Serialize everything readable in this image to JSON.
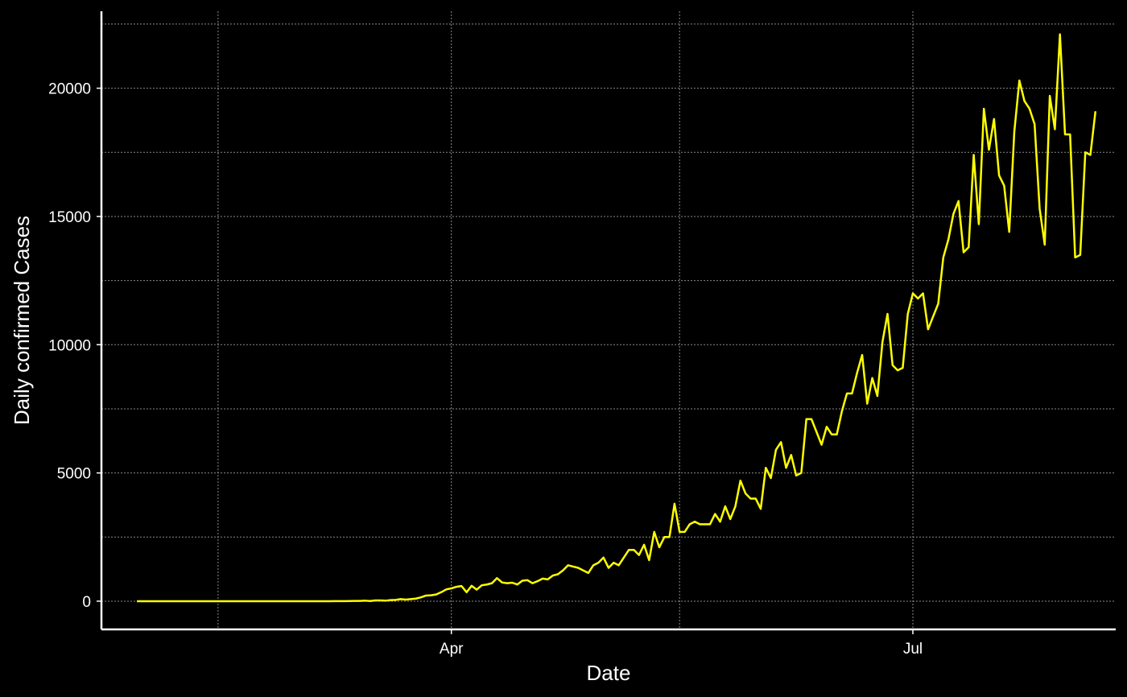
{
  "chart_data": {
    "type": "line",
    "xlabel": "Date",
    "ylabel": "Daily confirmed Cases",
    "x_start": "2020-01-30",
    "x_end": "2020-07-20",
    "x_domain": [
      "2020-01-23",
      "2020-08-10"
    ],
    "ylim": [
      -1100,
      23000
    ],
    "x_ticks": [
      {
        "date": "2020-04-01",
        "label": "Apr"
      },
      {
        "date": "2020-07-01",
        "label": "Jul"
      }
    ],
    "x_minor_grid": [
      "2020-02-15",
      "2020-05-16"
    ],
    "y_ticks": [
      0,
      5000,
      10000,
      15000,
      20000
    ],
    "y_tick_labels": [
      "0",
      "5000",
      "10000",
      "15000",
      "20000"
    ],
    "y_minor_grid": [
      2500,
      7500,
      12500,
      17500,
      22500
    ],
    "grid": true,
    "legend": "none",
    "colors": {
      "background": "#000000",
      "line": "#ffff00",
      "axis": "#ffffff",
      "grid": "#8a8a8a"
    },
    "series": [
      {
        "color": "#ffff00",
        "values": [
          0,
          0,
          0,
          0,
          0,
          0,
          0,
          0,
          0,
          0,
          0,
          0,
          0,
          0,
          0,
          0,
          0,
          0,
          0,
          0,
          0,
          0,
          0,
          0,
          0,
          0,
          0,
          0,
          0,
          0,
          0,
          0,
          0,
          0,
          0,
          0,
          0,
          0,
          0,
          1,
          1,
          2,
          5,
          10,
          10,
          20,
          5,
          30,
          30,
          20,
          40,
          50,
          80,
          60,
          80,
          100,
          150,
          220,
          230,
          260,
          350,
          460,
          500,
          560,
          590,
          350,
          600,
          450,
          620,
          650,
          700,
          900,
          730,
          700,
          720,
          650,
          800,
          820,
          700,
          780,
          880,
          850,
          1000,
          1050,
          1200,
          1400,
          1350,
          1300,
          1200,
          1100,
          1400,
          1500,
          1700,
          1300,
          1500,
          1400,
          1700,
          2000,
          2000,
          1800,
          2200,
          1600,
          2700,
          2100,
          2500,
          2500,
          3800,
          2700,
          2700,
          3000,
          3100,
          3000,
          3000,
          3000,
          3400,
          3100,
          3700,
          3200,
          3700,
          4700,
          4200,
          4000,
          4000,
          3600,
          5200,
          4800,
          5900,
          6200,
          5200,
          5700,
          4900,
          5000,
          7100,
          7100,
          6600,
          6100,
          6800,
          6500,
          6500,
          7400,
          8100,
          8100,
          8900,
          9600,
          7700,
          8700,
          8000,
          10100,
          11200,
          9200,
          9000,
          9100,
          11200,
          12000,
          11800,
          12000,
          10600,
          11100,
          11600,
          13400,
          14100,
          15100,
          15600,
          13600,
          13800,
          17400,
          14700,
          19200,
          17600,
          18800,
          16600,
          16200,
          14400,
          18300,
          20300,
          19500,
          19200,
          18600,
          15300,
          13900,
          19700,
          18400,
          22100,
          18200,
          18200,
          13400,
          13500,
          17500,
          17400,
          19100
        ]
      }
    ]
  }
}
